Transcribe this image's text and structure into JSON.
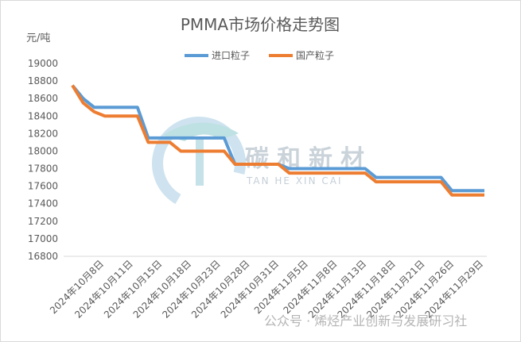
{
  "chart_data": {
    "type": "line",
    "title": "PMMA市场价格走势图",
    "unit_label": "元/吨",
    "ylim": [
      16800,
      19000
    ],
    "y_ticks": [
      16800,
      17000,
      17200,
      17400,
      17600,
      17800,
      18000,
      18200,
      18400,
      18600,
      18800,
      19000
    ],
    "x_tick_labels": [
      "2024年10月8日",
      "2024年10月11日",
      "2024年10月15日",
      "2024年10月18日",
      "2024年10月23日",
      "2024年10月28日",
      "2024年10月31日",
      "2024年11月5日",
      "2024年11月8日",
      "2024年11月13日",
      "2024年11月18日",
      "2024年11月21日",
      "2024年11月26日",
      "2024年11月29日"
    ],
    "x": [
      "2024-10-08",
      "2024-10-09",
      "2024-10-10",
      "2024-10-11",
      "2024-10-14",
      "2024-10-15",
      "2024-10-16",
      "2024-10-17",
      "2024-10-18",
      "2024-10-21",
      "2024-10-22",
      "2024-10-23",
      "2024-10-24",
      "2024-10-25",
      "2024-10-28",
      "2024-10-29",
      "2024-10-30",
      "2024-10-31",
      "2024-11-01",
      "2024-11-04",
      "2024-11-05",
      "2024-11-06",
      "2024-11-07",
      "2024-11-08",
      "2024-11-11",
      "2024-11-12",
      "2024-11-13",
      "2024-11-14",
      "2024-11-15",
      "2024-11-18",
      "2024-11-19",
      "2024-11-20",
      "2024-11-21",
      "2024-11-22",
      "2024-11-25",
      "2024-11-26",
      "2024-11-27",
      "2024-11-28",
      "2024-11-29"
    ],
    "series": [
      {
        "name": "进口粒子",
        "color": "#5b9bd5",
        "values": [
          18750,
          18600,
          18500,
          18500,
          18500,
          18500,
          18500,
          18150,
          18150,
          18150,
          18150,
          18150,
          18150,
          18150,
          18150,
          17850,
          17850,
          17850,
          17850,
          17850,
          17800,
          17800,
          17800,
          17800,
          17800,
          17800,
          17800,
          17800,
          17700,
          17700,
          17700,
          17700,
          17700,
          17700,
          17700,
          17550,
          17550,
          17550,
          17550
        ]
      },
      {
        "name": "国产粒子",
        "color": "#ed7d31",
        "values": [
          18750,
          18550,
          18450,
          18400,
          18400,
          18400,
          18400,
          18100,
          18100,
          18100,
          18000,
          18000,
          18000,
          18000,
          18000,
          17850,
          17850,
          17850,
          17850,
          17850,
          17750,
          17750,
          17750,
          17750,
          17750,
          17750,
          17750,
          17750,
          17650,
          17650,
          17650,
          17650,
          17650,
          17650,
          17650,
          17500,
          17500,
          17500,
          17500
        ]
      }
    ],
    "legend_position": "top-center",
    "grid": false
  },
  "watermark": {
    "brand_cn": "碳和新材",
    "brand_en": "TAN HE XIN CAI",
    "footer": "公众号 · 烯烃产业创新与发展研习社"
  }
}
